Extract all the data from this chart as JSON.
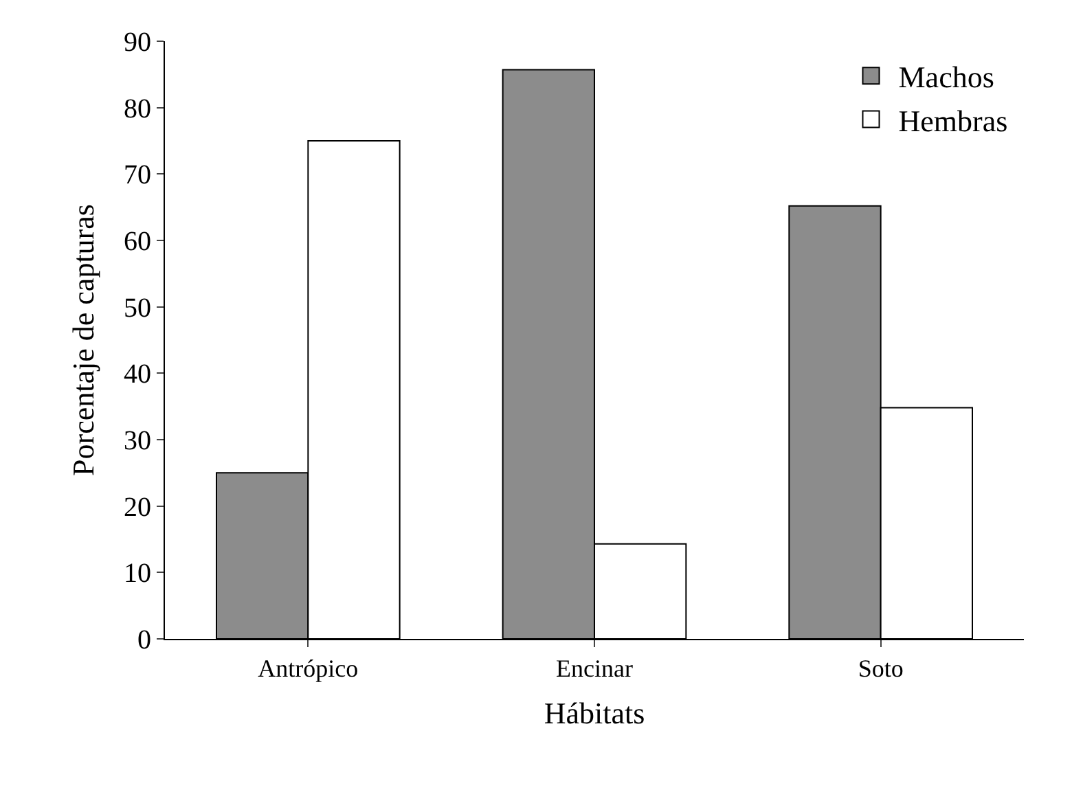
{
  "chart_data": {
    "type": "bar",
    "xlabel": "Hábitats",
    "ylabel": "Porcentaje de capturas",
    "categories": [
      "Antrópico",
      "Encinar",
      "Soto"
    ],
    "series": [
      {
        "name": "Machos",
        "color": "#8c8c8c",
        "values": [
          25,
          85.7,
          65.2
        ]
      },
      {
        "name": "Hembras",
        "color": "#ffffff",
        "values": [
          75,
          14.3,
          34.8
        ]
      }
    ],
    "ylim": [
      0,
      90
    ],
    "yticks": [
      0,
      10,
      20,
      30,
      40,
      50,
      60,
      70,
      80,
      90
    ],
    "grid": false,
    "legend": "top right"
  }
}
